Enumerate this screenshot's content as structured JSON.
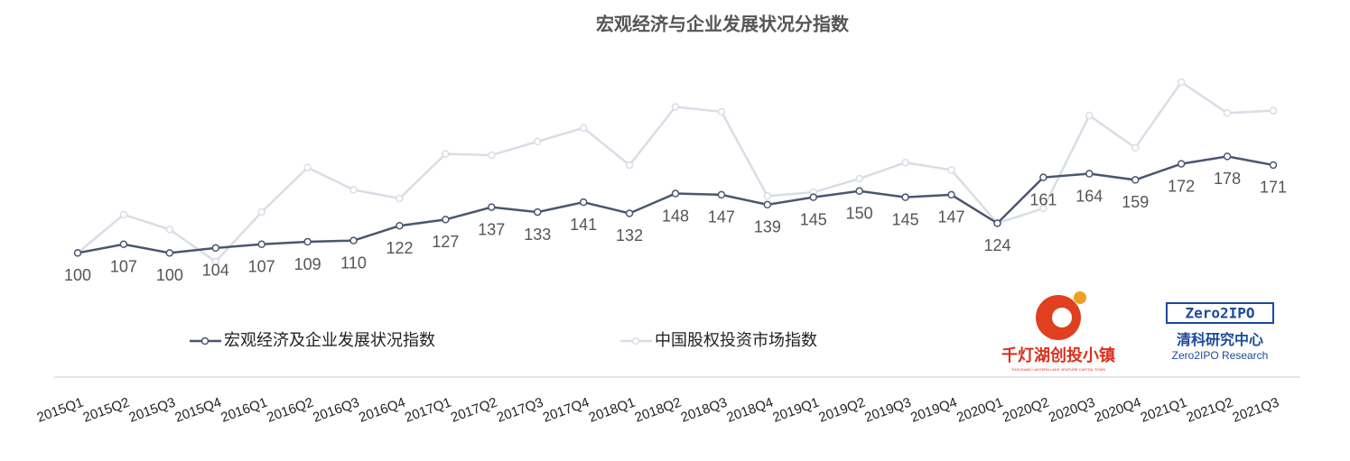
{
  "chart_data": {
    "type": "line",
    "title": "宏观经济与企业发展状况分指数",
    "categories": [
      "2015Q1",
      "2015Q2",
      "2015Q3",
      "2015Q4",
      "2016Q1",
      "2016Q2",
      "2016Q3",
      "2016Q4",
      "2017Q1",
      "2017Q2",
      "2017Q3",
      "2017Q4",
      "2018Q1",
      "2018Q2",
      "2018Q3",
      "2018Q4",
      "2019Q1",
      "2019Q2",
      "2019Q3",
      "2019Q4",
      "2020Q1",
      "2020Q2",
      "2020Q3",
      "2020Q4",
      "2021Q1",
      "2021Q2",
      "2021Q3"
    ],
    "series": [
      {
        "name": "宏观经济及企业发展状况指数",
        "color": "#4a5670",
        "show_labels": true,
        "values": [
          100,
          107,
          100,
          104,
          107,
          109,
          110,
          122,
          127,
          137,
          133,
          141,
          132,
          148,
          147,
          139,
          145,
          150,
          145,
          147,
          124,
          161,
          164,
          159,
          172,
          178,
          171
        ]
      },
      {
        "name": "中国股权投资市场指数",
        "color": "#d9dde6",
        "show_labels": false,
        "values": [
          100,
          131,
          119,
          93,
          133,
          169,
          151,
          144,
          180,
          179,
          190,
          201,
          171,
          218,
          214,
          146,
          149,
          160,
          173,
          167,
          124,
          136,
          211,
          185,
          238,
          213,
          215
        ]
      }
    ]
  },
  "logos": {
    "left_name": "千灯湖创投小镇",
    "left_sub": "THOUSAND LANTERN LAKE VENTURE CAPITAL TOWN",
    "right_badge": "Zero2IPO",
    "right_name": "清科研究中心",
    "right_sub": "Zero2IPO Research"
  }
}
